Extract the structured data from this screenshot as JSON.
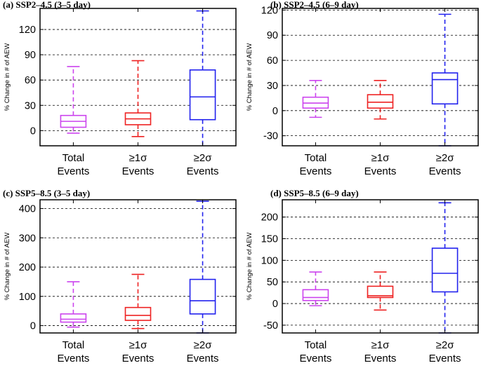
{
  "categories": [
    [
      "Total",
      "Events"
    ],
    [
      "≥1σ",
      "Events"
    ],
    [
      "≥2σ",
      "Events"
    ]
  ],
  "category_colors": [
    "#cc44ee",
    "#ee2222",
    "#2222ee"
  ],
  "chart_data": [
    {
      "type": "boxplot",
      "title": "(a) SSP2–4.5 (3–5 day)",
      "ylabel": "% Change in # of AEW",
      "ylim": [
        -18,
        145
      ],
      "yticks": [
        0,
        30,
        60,
        90,
        120
      ],
      "grid": true,
      "boxes": [
        {
          "category": "Total Events",
          "min": -3,
          "q1": 4,
          "median": 11,
          "q3": 18,
          "max": 76
        },
        {
          "category": "≥1σ Events",
          "min": -7,
          "q1": 7,
          "median": 14,
          "q3": 21,
          "max": 83
        },
        {
          "category": "≥2σ Events",
          "min": -20,
          "q1": 13,
          "median": 40,
          "q3": 72,
          "max": 142
        }
      ]
    },
    {
      "type": "boxplot",
      "title": "(b) SSP2–4.5 (6–9 day)",
      "ylabel": "% Change in # of AEW",
      "ylim": [
        -42,
        122
      ],
      "yticks": [
        -30,
        0,
        30,
        60,
        90,
        120
      ],
      "grid": true,
      "boxes": [
        {
          "category": "Total Events",
          "min": -8,
          "q1": 3,
          "median": 9,
          "q3": 16,
          "max": 36
        },
        {
          "category": "≥1σ Events",
          "min": -10,
          "q1": 3,
          "median": 10,
          "q3": 19,
          "max": 36
        },
        {
          "category": "≥2σ Events",
          "min": -42,
          "q1": 8,
          "median": 37,
          "q3": 45,
          "max": 115
        }
      ]
    },
    {
      "type": "boxplot",
      "title": "(c) SSP5–8.5 (3–5 day)",
      "ylabel": "% Change in # of AEW",
      "ylim": [
        -25,
        430
      ],
      "yticks": [
        0,
        100,
        200,
        300,
        400
      ],
      "grid": true,
      "boxes": [
        {
          "category": "Total Events",
          "min": -5,
          "q1": 12,
          "median": 22,
          "q3": 40,
          "max": 150
        },
        {
          "category": "≥1σ Events",
          "min": -10,
          "q1": 18,
          "median": 35,
          "q3": 62,
          "max": 175
        },
        {
          "category": "≥2σ Events",
          "min": -25,
          "q1": 40,
          "median": 85,
          "q3": 158,
          "max": 425
        }
      ]
    },
    {
      "type": "boxplot",
      "title": "(d) SSP5–8.5 (6–9 day)",
      "ylabel": "% Change in # of AEW",
      "ylim": [
        -68,
        240
      ],
      "yticks": [
        -50,
        0,
        50,
        100,
        150,
        200
      ],
      "grid": true,
      "boxes": [
        {
          "category": "Total Events",
          "min": -5,
          "q1": 7,
          "median": 14,
          "q3": 32,
          "max": 73
        },
        {
          "category": "≥1σ Events",
          "min": -15,
          "q1": 14,
          "median": 18,
          "q3": 40,
          "max": 73
        },
        {
          "category": "≥2σ Events",
          "min": -68,
          "q1": 27,
          "median": 70,
          "q3": 128,
          "max": 233
        }
      ]
    }
  ]
}
